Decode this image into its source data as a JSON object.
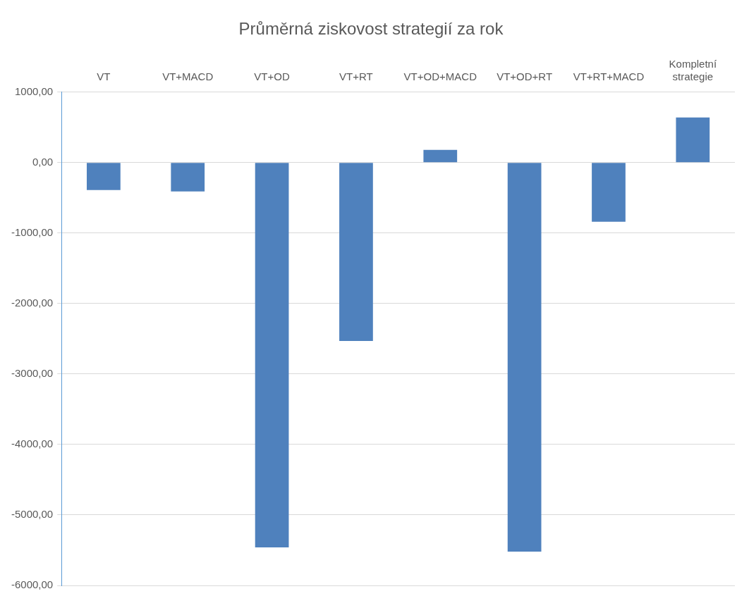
{
  "chart_data": {
    "type": "bar",
    "title": "Průměrná ziskovost strategií za rok",
    "categories": [
      "VT",
      "VT+MACD",
      "VT+OD",
      "VT+RT",
      "VT+OD+MACD",
      "VT+OD+RT",
      "VT+RT+MACD",
      "Kompletní strategie"
    ],
    "values": [
      -390,
      -410,
      -5460,
      -2530,
      180,
      -5520,
      -840,
      640
    ],
    "color": "#4f81bd",
    "ylim": [
      -6000,
      1000
    ],
    "yticks": [
      {
        "value": -6000,
        "label": "-6000,00"
      },
      {
        "value": -5000,
        "label": "-5000,00"
      },
      {
        "value": -4000,
        "label": "-4000,00"
      },
      {
        "value": -3000,
        "label": "-3000,00"
      },
      {
        "value": -2000,
        "label": "-2000,00"
      },
      {
        "value": -1000,
        "label": "-1000,00"
      },
      {
        "value": 0,
        "label": "0,00"
      },
      {
        "value": 1000,
        "label": "1000,00"
      }
    ],
    "grid": "y",
    "legend": false
  }
}
